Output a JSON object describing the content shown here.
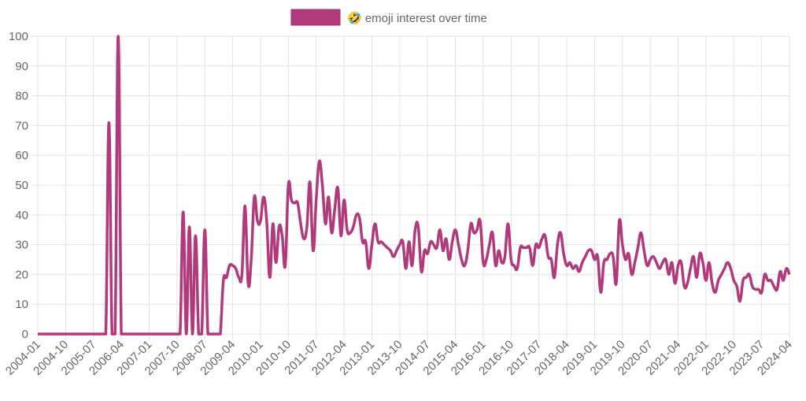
{
  "chart_data": {
    "type": "line",
    "legend": {
      "label": "🤣 emoji interest over time",
      "placement": "top-center"
    },
    "series": [
      {
        "name": "🤣 emoji interest over time",
        "color": "#b03a7b",
        "fill": "#b03a7b"
      }
    ],
    "ylim": [
      0,
      100
    ],
    "yticks": [
      "0",
      "10",
      "20",
      "30",
      "40",
      "50",
      "60",
      "70",
      "80",
      "90",
      "100"
    ],
    "grid": true,
    "x_start": "2004-01",
    "x_end": "2024-04",
    "xtick_labels": [
      "2004-01",
      "2004-10",
      "2005-07",
      "2006-04",
      "2007-01",
      "2007-10",
      "2008-07",
      "2009-04",
      "2010-01",
      "2010-10",
      "2011-07",
      "2012-04",
      "2013-01",
      "2013-10",
      "2014-07",
      "2015-04",
      "2016-01",
      "2016-10",
      "2017-07",
      "2018-04",
      "2019-01",
      "2019-10",
      "2020-07",
      "2021-04",
      "2022-01",
      "2022-10",
      "2023-07",
      "2024-04"
    ],
    "values": [
      0,
      0,
      0,
      0,
      0,
      0,
      0,
      0,
      0,
      0,
      0,
      0,
      0,
      0,
      0,
      0,
      0,
      0,
      0,
      0,
      0,
      0,
      0,
      71,
      0,
      0,
      100,
      0,
      0,
      0,
      0,
      0,
      0,
      0,
      0,
      0,
      0,
      0,
      0,
      0,
      0,
      0,
      0,
      0,
      0,
      0,
      0,
      41,
      0,
      36,
      0,
      33,
      0,
      0,
      35,
      0,
      0,
      0,
      0,
      0,
      18,
      19,
      23,
      23,
      22,
      19,
      20,
      43,
      17,
      25,
      46,
      38,
      38,
      46,
      38,
      19,
      37,
      24,
      36,
      33,
      23,
      50,
      45,
      44,
      44,
      37,
      32,
      36,
      51,
      28,
      45,
      58,
      50,
      37,
      46,
      34,
      42,
      49,
      33,
      45,
      35,
      34,
      36,
      40,
      39,
      31,
      31,
      22,
      30,
      37,
      31,
      31,
      30,
      29,
      28,
      26,
      28,
      30,
      31,
      22,
      31,
      23,
      35,
      36,
      21,
      28,
      27,
      31,
      30,
      29,
      35,
      28,
      32,
      25,
      31,
      35,
      30,
      25,
      23,
      28,
      37,
      34,
      35,
      38,
      24,
      25,
      30,
      34,
      23,
      28,
      24,
      26,
      37,
      25,
      23,
      22,
      29,
      29,
      29,
      29,
      23,
      30,
      29,
      32,
      33,
      26,
      25,
      19,
      30,
      34,
      27,
      23,
      24,
      22,
      23,
      21,
      24,
      26,
      28,
      28,
      25,
      26,
      14,
      24,
      25,
      27,
      26,
      17,
      38,
      30,
      25,
      27,
      20,
      24,
      29,
      34,
      28,
      23,
      25,
      26,
      24,
      22,
      24,
      25,
      20,
      24,
      17,
      23,
      24,
      16,
      17,
      22,
      26,
      19,
      27,
      24,
      18,
      24,
      17,
      14,
      18,
      20,
      22,
      24,
      22,
      18,
      16,
      11,
      18,
      19,
      20,
      16,
      15,
      15,
      14,
      20,
      18,
      18,
      16,
      15,
      21,
      18,
      22,
      20
    ]
  }
}
